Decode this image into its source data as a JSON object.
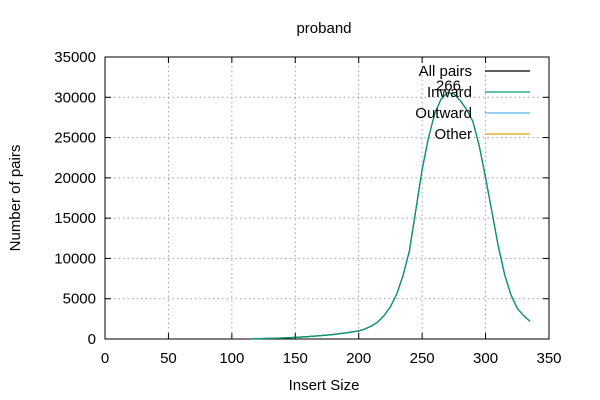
{
  "chart_data": {
    "type": "line",
    "title": "proband",
    "xlabel": "Insert Size",
    "ylabel": "Number of pairs",
    "xlim": [
      0,
      350
    ],
    "ylim": [
      0,
      35000
    ],
    "xticks": [
      "0",
      "50",
      "100",
      "150",
      "200",
      "250",
      "300",
      "350"
    ],
    "yticks": [
      "0",
      "5000",
      "10000",
      "15000",
      "20000",
      "25000",
      "30000",
      "35000"
    ],
    "grid": true,
    "legend_position": "top-right",
    "peak_label": {
      "text": "266",
      "x": 266,
      "y": 30700
    },
    "series": [
      {
        "name": "All pairs",
        "color": "#000000",
        "x": [
          115,
          130,
          140,
          150,
          160,
          170,
          180,
          190,
          200,
          205,
          210,
          215,
          220,
          225,
          230,
          235,
          240,
          245,
          250,
          255,
          260,
          265,
          270,
          275,
          280,
          285,
          290,
          295,
          300,
          305,
          310,
          315,
          320,
          325,
          330,
          335
        ],
        "y": [
          30,
          80,
          130,
          200,
          300,
          420,
          560,
          760,
          1000,
          1250,
          1600,
          2100,
          2900,
          4000,
          5600,
          7900,
          11000,
          16000,
          21000,
          25000,
          28000,
          29800,
          30600,
          30400,
          29600,
          28500,
          27000,
          24000,
          20000,
          15800,
          11500,
          8000,
          5500,
          3800,
          2900,
          2200
        ]
      },
      {
        "name": "Inward",
        "color": "#009e73",
        "x": [
          115,
          130,
          140,
          150,
          160,
          170,
          180,
          190,
          200,
          205,
          210,
          215,
          220,
          225,
          230,
          235,
          240,
          245,
          250,
          255,
          260,
          265,
          270,
          275,
          280,
          285,
          290,
          295,
          300,
          305,
          310,
          315,
          320,
          325,
          330,
          335
        ],
        "y": [
          30,
          80,
          130,
          200,
          300,
          420,
          560,
          760,
          1000,
          1250,
          1600,
          2100,
          2900,
          4000,
          5600,
          7900,
          11000,
          16000,
          21000,
          25000,
          28000,
          29800,
          30600,
          30400,
          29600,
          28500,
          27000,
          24000,
          20000,
          15800,
          11500,
          8000,
          5500,
          3800,
          2900,
          2200
        ]
      },
      {
        "name": "Outward",
        "color": "#56b4e9",
        "x": [],
        "y": []
      },
      {
        "name": "Other",
        "color": "#e69f00",
        "x": [],
        "y": []
      }
    ]
  }
}
